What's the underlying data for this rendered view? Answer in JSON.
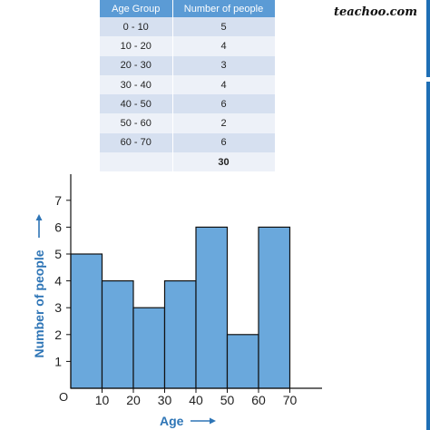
{
  "brand": "teachoo.com",
  "table": {
    "headers": [
      "Age Group",
      "Number of people"
    ],
    "rows": [
      [
        "0 - 10",
        "5"
      ],
      [
        "10 - 20",
        "4"
      ],
      [
        "20 - 30",
        "3"
      ],
      [
        "30 - 40",
        "4"
      ],
      [
        "40 - 50",
        "6"
      ],
      [
        "50 - 60",
        "2"
      ],
      [
        "60 - 70",
        "6"
      ]
    ],
    "total": "30"
  },
  "colors": {
    "bar_fill": "#6aa8dc",
    "bar_stroke": "#111111",
    "axis_label": "#2e75b6",
    "table_header": "#5b9bd5",
    "accent_bar": "#1f6fb5"
  },
  "chart_data": {
    "type": "bar",
    "subtype": "histogram",
    "bins": [
      [
        0,
        10
      ],
      [
        10,
        20
      ],
      [
        20,
        30
      ],
      [
        30,
        40
      ],
      [
        40,
        50
      ],
      [
        50,
        60
      ],
      [
        60,
        70
      ]
    ],
    "values": [
      5,
      4,
      3,
      4,
      6,
      2,
      6
    ],
    "xlabel": "Age",
    "ylabel": "Number of people",
    "x_ticks": [
      "10",
      "20",
      "30",
      "40",
      "50",
      "60",
      "70"
    ],
    "y_ticks": [
      "1",
      "2",
      "3",
      "4",
      "5",
      "6",
      "7"
    ],
    "origin_label": "O",
    "xlim": [
      0,
      70
    ],
    "ylim": [
      0,
      7
    ],
    "grid": false,
    "legend": "none"
  }
}
